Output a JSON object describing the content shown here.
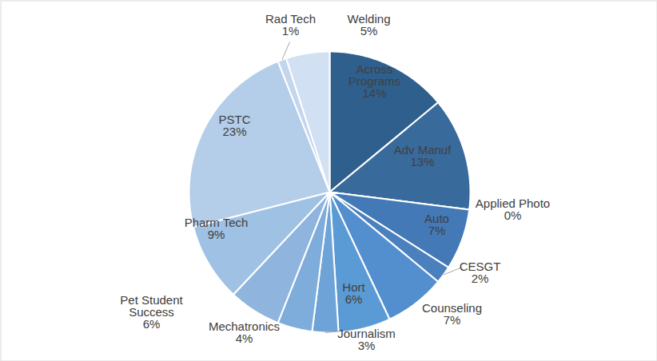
{
  "chart_data": {
    "type": "pie",
    "categories": [
      "Across Programs",
      "Adv Manuf",
      "Applied Photo",
      "Auto",
      "CESGT",
      "Counseling",
      "Hort",
      "Journalism",
      "Mechatronics",
      "Pet Student Success",
      "Pharm Tech",
      "PSTC",
      "Rad Tech",
      "Welding"
    ],
    "values": [
      14,
      13,
      0,
      7,
      2,
      7,
      6,
      3,
      4,
      6,
      9,
      23,
      1,
      5
    ],
    "value_labels": [
      "14%",
      "13%",
      "0%",
      "7%",
      "2%",
      "7%",
      "6%",
      "3%",
      "4%",
      "6%",
      "9%",
      "23%",
      "1%",
      "5%"
    ],
    "colors": [
      "#2f5f8c",
      "#386a9c",
      "#3c72aa",
      "#4279b6",
      "#4a80bd",
      "#538fce",
      "#5b9bd5",
      "#6ea3d8",
      "#7eacdb",
      "#8fb5de",
      "#9fc1e4",
      "#b4cde9",
      "#c2d6ee",
      "#d1e0f2"
    ],
    "data_labels": true
  }
}
